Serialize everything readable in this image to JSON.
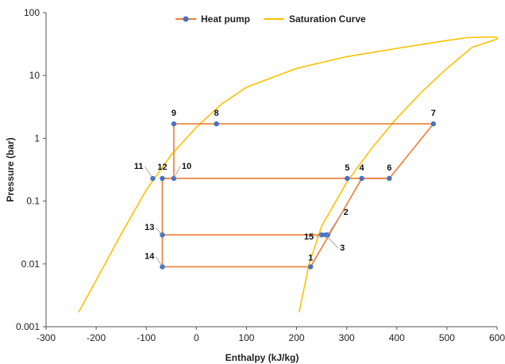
{
  "chart_data": {
    "type": "line",
    "xlabel": "Enthalpy (kJ/kg)",
    "ylabel": "Pressure (bar)",
    "xlim": [
      -300,
      600
    ],
    "ylim": [
      0.001,
      100
    ],
    "y_scale": "log",
    "grid": false,
    "legend_position": "top",
    "x_ticks": [
      "-300",
      "-200",
      "-100",
      "0",
      "100",
      "200",
      "300",
      "400",
      "500",
      "600"
    ],
    "y_ticks": [
      "0.001",
      "0.01",
      "0.1",
      "1",
      "10",
      "100"
    ],
    "colors": {
      "heat_pump": "#ED7D31",
      "marker": "#4472C4",
      "saturation": "#FFC000"
    },
    "series": [
      {
        "name": "Heat pump",
        "points": [
          {
            "label": "1",
            "h": 228,
            "p": 0.009
          },
          {
            "label": "15",
            "h": 250,
            "p": 0.029
          },
          {
            "label": "2",
            "h": 262,
            "p": 0.029
          },
          {
            "label": "3",
            "h": 258,
            "p": 0.029
          },
          {
            "label": "4",
            "h": 330,
            "p": 0.23
          },
          {
            "label": "5",
            "h": 301,
            "p": 0.23
          },
          {
            "label": "6",
            "h": 385,
            "p": 0.23
          },
          {
            "label": "7",
            "h": 473,
            "p": 1.7
          },
          {
            "label": "8",
            "h": 40,
            "p": 1.7
          },
          {
            "label": "9",
            "h": -45,
            "p": 1.7
          },
          {
            "label": "10",
            "h": -45,
            "p": 0.23
          },
          {
            "label": "11",
            "h": -87,
            "p": 0.23
          },
          {
            "label": "12",
            "h": -68,
            "p": 0.23
          },
          {
            "label": "13",
            "h": -68,
            "p": 0.029
          },
          {
            "label": "14",
            "h": -68,
            "p": 0.009
          }
        ]
      },
      {
        "name": "Saturation Curve",
        "liquid_line": [
          [
            -235,
            0.0017
          ],
          [
            -200,
            0.0055
          ],
          [
            -150,
            0.03
          ],
          [
            -100,
            0.15
          ],
          [
            -50,
            0.55
          ],
          [
            0,
            1.5
          ],
          [
            50,
            3.5
          ],
          [
            100,
            6.5
          ],
          [
            200,
            13
          ],
          [
            300,
            20
          ],
          [
            400,
            27
          ],
          [
            500,
            36
          ],
          [
            540,
            40
          ]
        ],
        "vapor_line": [
          [
            205,
            0.0017
          ],
          [
            225,
            0.01
          ],
          [
            250,
            0.04
          ],
          [
            300,
            0.2
          ],
          [
            350,
            0.7
          ],
          [
            400,
            2.1
          ],
          [
            450,
            5.5
          ],
          [
            500,
            13
          ],
          [
            550,
            28
          ],
          [
            600,
            38
          ],
          [
            600,
            40
          ],
          [
            595,
            41
          ],
          [
            580,
            41
          ],
          [
            540,
            40
          ]
        ]
      }
    ]
  }
}
